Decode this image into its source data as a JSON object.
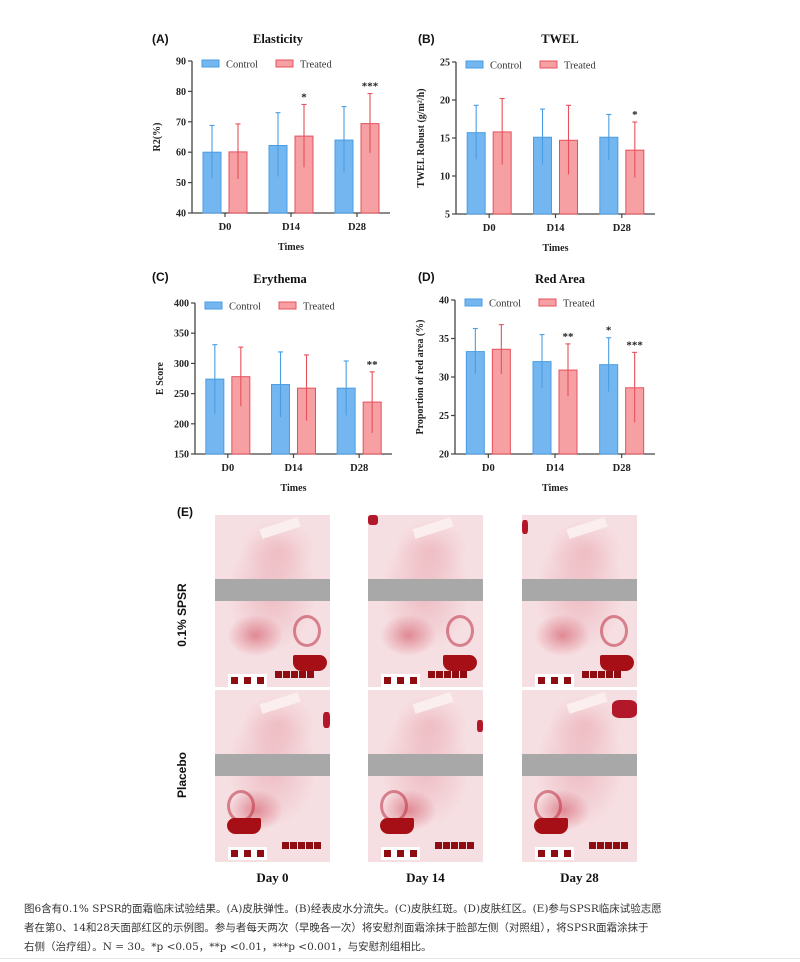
{
  "colors": {
    "control_fill": "#74b6f0",
    "control_edge": "#4a9de3",
    "treated_fill": "#f6a0a4",
    "treated_edge": "#e6505a",
    "axis": "#444444"
  },
  "legend": [
    "Control",
    "Treated"
  ],
  "chart_data": [
    {
      "id": "A",
      "panel_label": "(A)",
      "type": "bar",
      "title": "Elasticity",
      "xlabel": "Times",
      "ylabel": "R2(%)",
      "categories": [
        "D0",
        "D14",
        "D28"
      ],
      "ylim": [
        40,
        90
      ],
      "yticks": [
        40,
        50,
        60,
        70,
        80,
        90
      ],
      "legend_position": "top",
      "series": [
        {
          "name": "Control",
          "values": [
            60.0,
            62.2,
            64.0
          ],
          "err_low": [
            51.5,
            52.0,
            53.3
          ],
          "err_high": [
            68.8,
            73.0,
            75.0
          ],
          "significance": [
            "",
            "",
            ""
          ]
        },
        {
          "name": "Treated",
          "values": [
            60.1,
            65.3,
            69.4
          ],
          "err_low": [
            51.2,
            55.0,
            59.8
          ],
          "err_high": [
            69.3,
            75.7,
            79.3
          ],
          "significance": [
            "",
            "*",
            "***"
          ]
        }
      ]
    },
    {
      "id": "B",
      "panel_label": "(B)",
      "type": "bar",
      "title": "TWEL",
      "xlabel": "Times",
      "ylabel": "TWEL Robust (g/m²/h)",
      "categories": [
        "D0",
        "D14",
        "D28"
      ],
      "ylim": [
        5,
        25
      ],
      "yticks": [
        5,
        10,
        15,
        20,
        25
      ],
      "legend_position": "top",
      "series": [
        {
          "name": "Control",
          "values": [
            15.7,
            15.1,
            15.1
          ],
          "err_low": [
            12.2,
            11.5,
            12.1
          ],
          "err_high": [
            19.3,
            18.8,
            18.1
          ],
          "significance": [
            "",
            "",
            ""
          ]
        },
        {
          "name": "Treated",
          "values": [
            15.8,
            14.7,
            13.4
          ],
          "err_low": [
            11.5,
            10.2,
            9.8
          ],
          "err_high": [
            20.2,
            19.3,
            17.1
          ],
          "significance": [
            "",
            "",
            "*"
          ]
        }
      ]
    },
    {
      "id": "C",
      "panel_label": "(C)",
      "type": "bar",
      "title": "Erythema",
      "xlabel": "Times",
      "ylabel": "E Score",
      "categories": [
        "D0",
        "D14",
        "D28"
      ],
      "ylim": [
        150,
        400
      ],
      "yticks": [
        150,
        200,
        250,
        300,
        350,
        400
      ],
      "legend_position": "top",
      "series": [
        {
          "name": "Control",
          "values": [
            274,
            265,
            259
          ],
          "err_low": [
            217,
            211,
            214
          ],
          "err_high": [
            331,
            319,
            304
          ],
          "significance": [
            "",
            "",
            ""
          ]
        },
        {
          "name": "Treated",
          "values": [
            278,
            259,
            236
          ],
          "err_low": [
            229,
            205,
            185
          ],
          "err_high": [
            327,
            314,
            286
          ],
          "significance": [
            "",
            "",
            "**"
          ]
        }
      ]
    },
    {
      "id": "D",
      "panel_label": "(D)",
      "type": "bar",
      "title": "Red Area",
      "xlabel": "Times",
      "ylabel": "Proportion of red area (%)",
      "categories": [
        "D0",
        "D14",
        "D28"
      ],
      "ylim": [
        20,
        40
      ],
      "yticks": [
        20,
        25,
        30,
        35,
        40
      ],
      "legend_position": "top",
      "series": [
        {
          "name": "Control",
          "values": [
            33.3,
            32.0,
            31.6
          ],
          "err_low": [
            30.4,
            28.6,
            28.1
          ],
          "err_high": [
            36.3,
            35.5,
            35.1
          ],
          "significance": [
            "",
            "",
            "*"
          ]
        },
        {
          "name": "Treated",
          "values": [
            33.6,
            30.9,
            28.6
          ],
          "err_low": [
            30.4,
            27.5,
            24.1
          ],
          "err_high": [
            36.8,
            34.3,
            33.2
          ],
          "significance": [
            "",
            "**",
            "***"
          ]
        }
      ]
    }
  ],
  "photos": {
    "panel_label": "(E)",
    "rows": [
      "0.1% SPSR",
      "Placebo"
    ],
    "columns": [
      "Day 0",
      "Day 14",
      "Day 28"
    ]
  },
  "caption": {
    "lines": [
      "图6含有0.1% SPSR的面霜临床试验结果。(A)皮肤弹性。(B)经表皮水分流失。(C)皮肤红斑。(D)皮肤红区。(E)参与SPSR临床试验志愿",
      "者在第0、14和28天面部红区的示例图。参与者每天两次（早晚各一次）将安慰剂面霜涂抹于脸部左侧（对照组），将SPSR面霜涂抹于",
      "右侧（治疗组）。N = 30。*p <0.05，**p <0.01，***p <0.001，与安慰剂组相比。"
    ]
  }
}
